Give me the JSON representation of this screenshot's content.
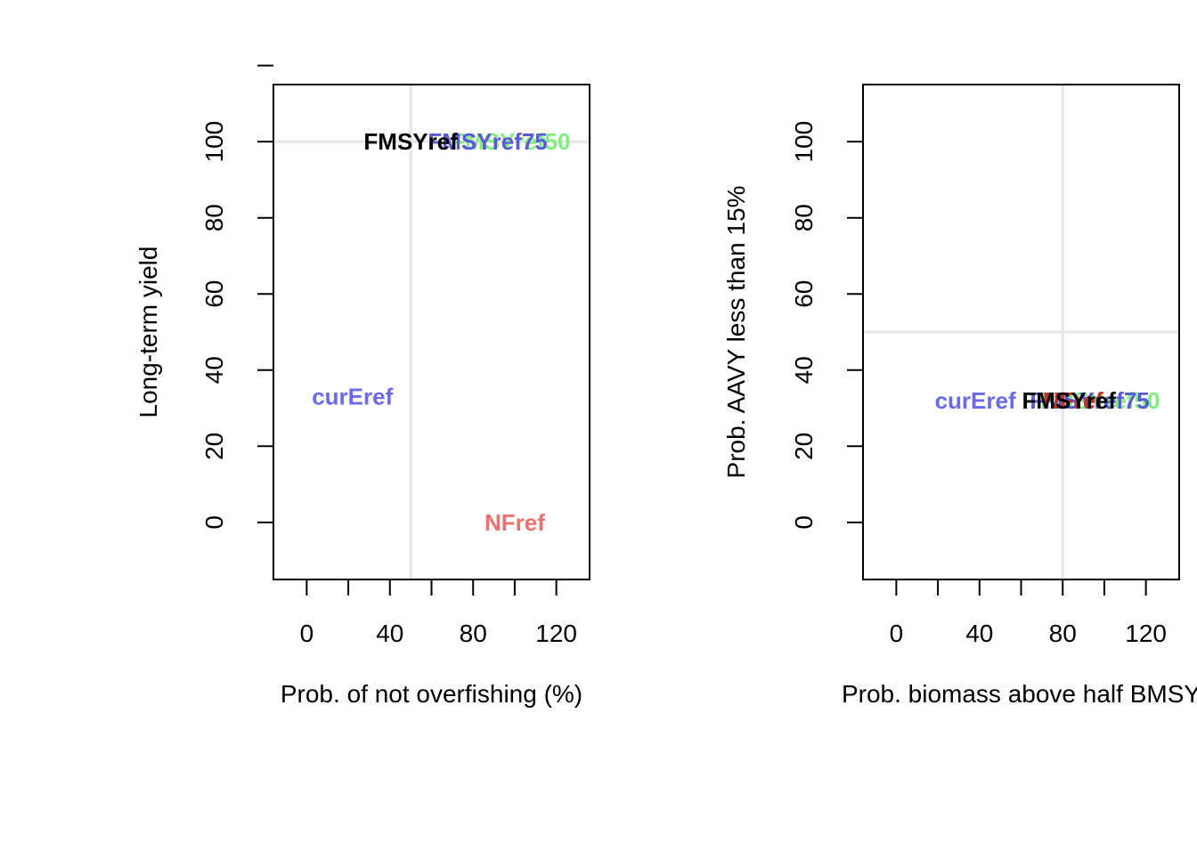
{
  "chart_data": [
    {
      "type": "scatter",
      "title": "",
      "xlabel": "Prob. of not overfishing (%)",
      "ylabel": "Long-term yield",
      "xlim": [
        -16,
        136
      ],
      "ylim": [
        -15,
        115
      ],
      "xticks": [
        0,
        20,
        40,
        60,
        80,
        100,
        120
      ],
      "xtick_labels": [
        "0",
        "",
        "40",
        "",
        "80",
        "",
        "120"
      ],
      "yticks": [
        0,
        20,
        40,
        60,
        80,
        100,
        120
      ],
      "ytick_labels": [
        "0",
        "20",
        "40",
        "60",
        "80",
        "100",
        ""
      ],
      "reference_lines": {
        "x": 50,
        "y": 100,
        "color": "#e6e6e6"
      },
      "grid": false,
      "points": [
        {
          "label": "NFref",
          "x": 100,
          "y": 0,
          "color": "#f07070"
        },
        {
          "label": "curEref",
          "x": 22,
          "y": 33,
          "color": "#6a6aee"
        },
        {
          "label": "FMSYref50",
          "x": 98,
          "y": 100,
          "color": "#7ef07e"
        },
        {
          "label": "FMSYref75",
          "x": 87,
          "y": 100,
          "color": "#5a5ad8"
        },
        {
          "label": "FMSYref",
          "x": 50,
          "y": 100,
          "color": "#000000"
        }
      ]
    },
    {
      "type": "scatter",
      "title": "",
      "xlabel": "Prob. biomass above half BMSY",
      "ylabel": "Prob. AAVY less than 15%",
      "xlim": [
        -16,
        136
      ],
      "ylim": [
        -15,
        115
      ],
      "xticks": [
        0,
        20,
        40,
        60,
        80,
        100,
        120
      ],
      "xtick_labels": [
        "0",
        "",
        "40",
        "",
        "80",
        "",
        "120"
      ],
      "yticks": [
        0,
        20,
        40,
        60,
        80,
        100
      ],
      "ytick_labels": [
        "0",
        "20",
        "40",
        "60",
        "80",
        "100"
      ],
      "reference_lines": {
        "x": 80,
        "y": 50,
        "color": "#e6e6e6"
      },
      "grid": false,
      "points": [
        {
          "label": "curEref",
          "x": 38,
          "y": 32,
          "color": "#6a6aee"
        },
        {
          "label": "FMSYref50",
          "x": 98,
          "y": 32,
          "color": "#7ef07e"
        },
        {
          "label": "FMSYref75",
          "x": 93,
          "y": 32,
          "color": "#5a5ad8"
        },
        {
          "label": "NFref",
          "x": 85,
          "y": 32,
          "color": "#c83030"
        },
        {
          "label": "FMSYref",
          "x": 83,
          "y": 32,
          "color": "#000000"
        }
      ]
    }
  ]
}
